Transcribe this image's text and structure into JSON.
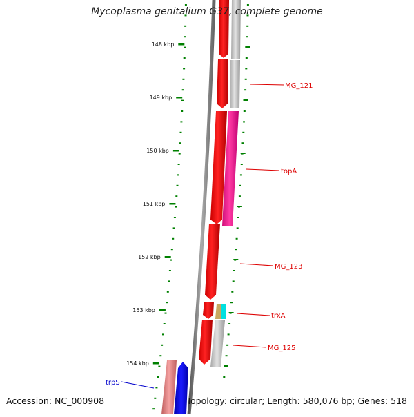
{
  "title": "Mycoplasma genitalium G37, complete genome",
  "footer": {
    "accession": "Accession: NC_000908",
    "summary": "Topology: circular; Length: 580,076 bp; Genes: 518"
  },
  "scale_labels": [
    "148 kbp",
    "149 kbp",
    "150 kbp",
    "151 kbp",
    "152 kbp",
    "153 kbp",
    "154 kbp"
  ],
  "gene_labels": [
    {
      "name": "MG_121",
      "color": "#dd0000"
    },
    {
      "name": "topA",
      "color": "#dd0000"
    },
    {
      "name": "MG_123",
      "color": "#dd0000"
    },
    {
      "name": "trxA",
      "color": "#dd0000"
    },
    {
      "name": "MG_125",
      "color": "#dd0000"
    },
    {
      "name": "trpS",
      "color": "#0000cc"
    }
  ],
  "colors": {
    "cds_forward": "#ff0000",
    "cds_grey": "#c8c8c8",
    "topA_magenta": "#ff1493",
    "trpS_blue": "#0000ee",
    "trpS_pink": "#f08080",
    "tick_green": "#008000",
    "backbone": "#808080"
  }
}
